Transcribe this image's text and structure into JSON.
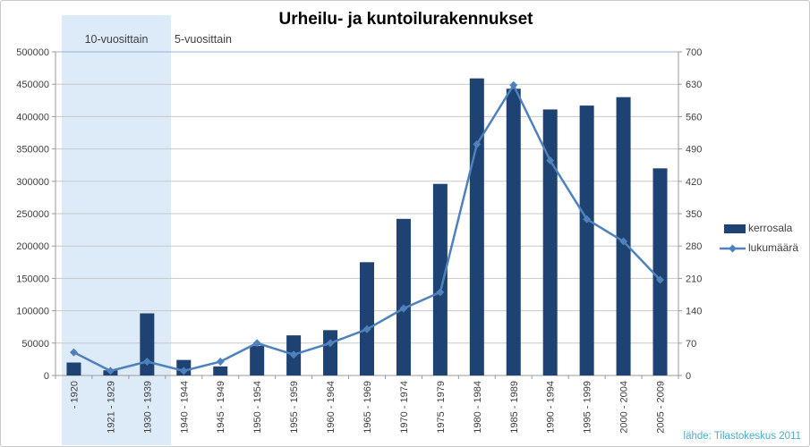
{
  "chart_data": {
    "type": "bar+line combo (dual axis)",
    "title": "Urheilu- ja kuntoilurakennukset",
    "categories": [
      "- 1920",
      "1921 - 1929",
      "1930 - 1939",
      "1940 - 1944",
      "1945 - 1949",
      "1950 - 1954",
      "1955 - 1959",
      "1960 - 1964",
      "1965 - 1969",
      "1970 - 1974",
      "1975 - 1979",
      "1980 - 1984",
      "1985 - 1989",
      "1990 - 1994",
      "1995 - 1999",
      "2000 - 2004",
      "2005 - 2009"
    ],
    "series": [
      {
        "name": "kerrosala",
        "type": "bar",
        "axis": "left",
        "color": "#1e4271",
        "values": [
          20000,
          8000,
          96000,
          24000,
          14000,
          46000,
          62000,
          70000,
          175000,
          242000,
          296000,
          459000,
          443000,
          411000,
          417000,
          430000,
          320000
        ]
      },
      {
        "name": "lukumäärä",
        "type": "line",
        "axis": "right",
        "marker": "diamond",
        "color": "#4f81bd",
        "values": [
          50,
          10,
          30,
          10,
          30,
          70,
          45,
          70,
          100,
          145,
          180,
          500,
          628,
          465,
          338,
          290,
          207
        ]
      }
    ],
    "y_left": {
      "min": 0,
      "max": 500000,
      "step": 50000,
      "tick_labels": [
        "0",
        "50000",
        "100000",
        "150000",
        "200000",
        "250000",
        "300000",
        "350000",
        "400000",
        "450000",
        "500000"
      ]
    },
    "y_right": {
      "min": 0,
      "max": 700,
      "step": 70,
      "tick_labels": [
        "0",
        "70",
        "140",
        "210",
        "280",
        "350",
        "420",
        "490",
        "560",
        "630",
        "700"
      ]
    },
    "grid": true,
    "legend_position": "right",
    "annotations": {
      "shaded_band": {
        "label": "10-vuosittain",
        "covers_categories": [
          "- 1920",
          "1921 - 1929",
          "1930 - 1939"
        ],
        "color": "#ddeaf7"
      },
      "outside_band_label": "5-vuosittain"
    },
    "source": "lähde: Tilastokeskus 2011",
    "colors": {
      "grid": "#c8c8c8",
      "axis": "#9a9a9a",
      "tick_text": "#3f3f3f",
      "plot_top_border": "#95b3d7",
      "source_text": "#4bacc6",
      "title_text": "#000000"
    }
  }
}
